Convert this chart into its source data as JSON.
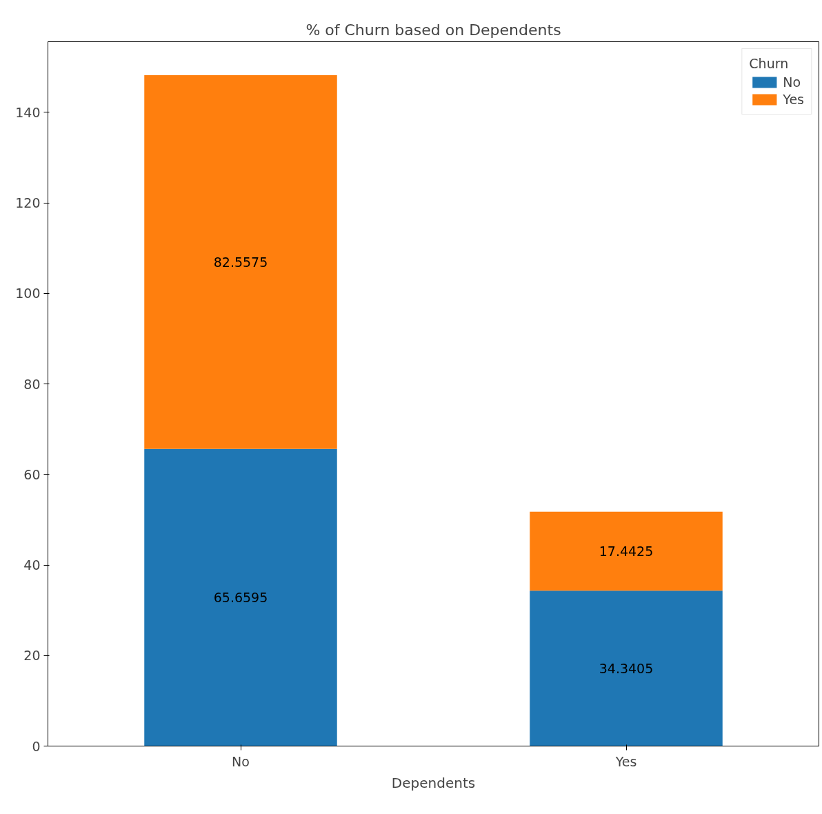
{
  "chart_data": {
    "type": "bar",
    "stacked": true,
    "title": "% of Churn based on Dependents",
    "xlabel": "Dependents",
    "legend_title": "Churn",
    "categories": [
      "No",
      "Yes"
    ],
    "series": [
      {
        "name": "No",
        "color": "#1f77b4",
        "values": [
          65.6595,
          34.3405
        ]
      },
      {
        "name": "Yes",
        "color": "#ff7f0e",
        "values": [
          82.5575,
          17.4425
        ]
      }
    ],
    "ylim": [
      0,
      155.6
    ],
    "yticks": [
      0,
      20,
      40,
      60,
      80,
      100,
      120,
      140
    ],
    "grid": false,
    "legend": "top right",
    "data_labels": true
  }
}
